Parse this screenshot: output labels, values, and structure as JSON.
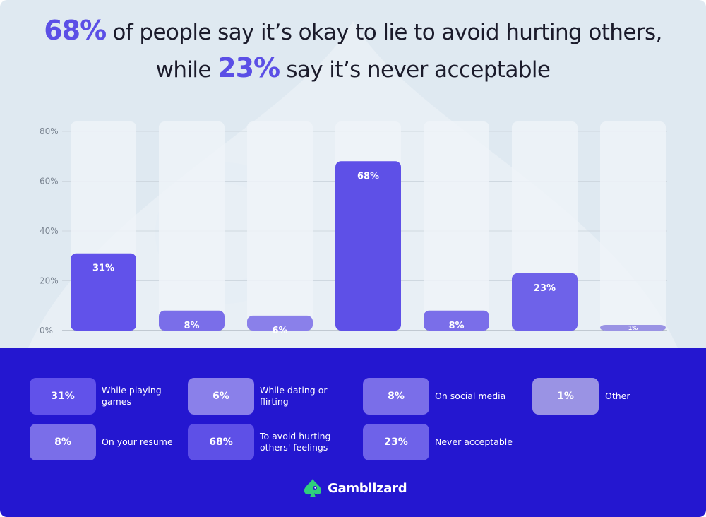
{
  "title": {
    "highlight_1": "68%",
    "text_1": " of people say it’s okay to lie to avoid hurting others,",
    "text_2_prefix": "while ",
    "highlight_2": "23%",
    "text_2_suffix": " say it’s never acceptable"
  },
  "colors": {
    "top_background": "#dfe9f1",
    "bottom_background": "#2417d0",
    "accent": "#5b4fe6",
    "bar_track": "#eef3f8",
    "brand_green": "#2fcf7d"
  },
  "chart_data": {
    "type": "bar",
    "categories": [
      "While playing games",
      "On your resume",
      "While dating or flirting",
      "To avoid hurting others' feelings",
      "On social media",
      "Never acceptable",
      "Other"
    ],
    "values": [
      31,
      8,
      6,
      68,
      8,
      23,
      1
    ],
    "data_labels": [
      "31%",
      "8%",
      "6%",
      "68%",
      "8%",
      "23%",
      "1%"
    ],
    "bar_colors": [
      "#6152ea",
      "#7a6ee9",
      "#8a80ea",
      "#5e50e7",
      "#7a6ee9",
      "#6e62e9",
      "#9a93e4"
    ],
    "y_ticks": [
      "0%",
      "20%",
      "40%",
      "60%",
      "80%"
    ],
    "ylim": [
      0,
      80
    ],
    "grid": true
  },
  "legend": [
    {
      "value": "31%",
      "label": "While playing games",
      "color": "#6152ea"
    },
    {
      "value": "6%",
      "label": "While dating or flirting",
      "color": "#8a80ea"
    },
    {
      "value": "8%",
      "label": "On social media",
      "color": "#7a6ee9"
    },
    {
      "value": "1%",
      "label": "Other",
      "color": "#9a93e4"
    },
    {
      "value": "8%",
      "label": "On your resume",
      "color": "#7a6ee9"
    },
    {
      "value": "68%",
      "label": "To avoid hurting others' feelings",
      "color": "#5e50e7"
    },
    {
      "value": "23%",
      "label": "Never acceptable",
      "color": "#6e62e9"
    }
  ],
  "brand": {
    "name": "Gamblizard",
    "icon": "lizard-spade-icon"
  }
}
